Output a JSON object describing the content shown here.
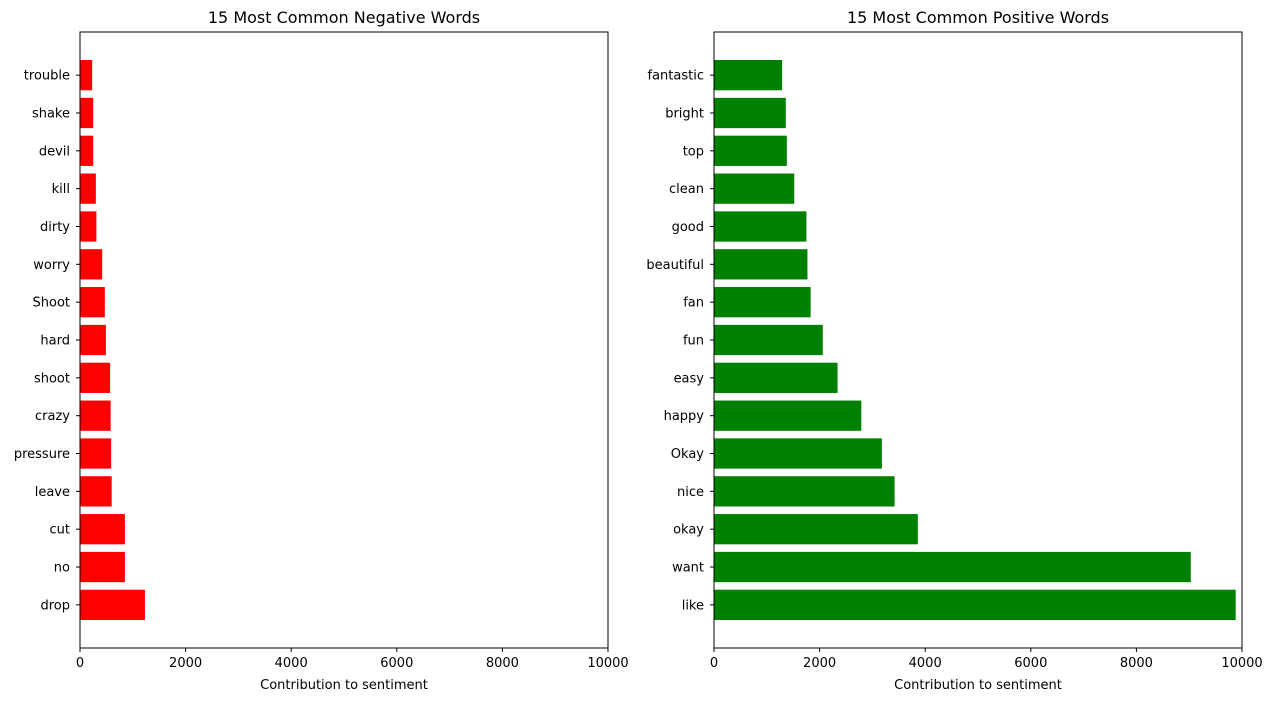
{
  "chart_data": [
    {
      "type": "bar",
      "orientation": "horizontal",
      "title": "15 Most Common Negative Words",
      "xlabel": "Contribution to sentiment",
      "ylabel": "",
      "xlim": [
        0,
        10000
      ],
      "xticks": [
        0,
        2000,
        4000,
        6000,
        8000,
        10000
      ],
      "grid": false,
      "color": "#ff0000",
      "categories": [
        "drop",
        "no",
        "cut",
        "leave",
        "pressure",
        "crazy",
        "shoot",
        "hard",
        "Shoot",
        "worry",
        "dirty",
        "kill",
        "devil",
        "shake",
        "trouble"
      ],
      "values": [
        1230,
        850,
        850,
        600,
        590,
        580,
        570,
        490,
        470,
        420,
        310,
        300,
        250,
        250,
        230
      ]
    },
    {
      "type": "bar",
      "orientation": "horizontal",
      "title": "15 Most Common Positive Words",
      "xlabel": "Contribution to sentiment",
      "ylabel": "",
      "xlim": [
        0,
        10000
      ],
      "xticks": [
        0,
        2000,
        4000,
        6000,
        8000,
        10000
      ],
      "grid": false,
      "color": "#008000",
      "categories": [
        "like",
        "want",
        "okay",
        "nice",
        "Okay",
        "happy",
        "easy",
        "fun",
        "fan",
        "beautiful",
        "good",
        "clean",
        "top",
        "bright",
        "fantastic"
      ],
      "values": [
        9880,
        9030,
        3860,
        3420,
        3180,
        2790,
        2340,
        2060,
        1830,
        1770,
        1750,
        1520,
        1380,
        1360,
        1290
      ]
    }
  ]
}
